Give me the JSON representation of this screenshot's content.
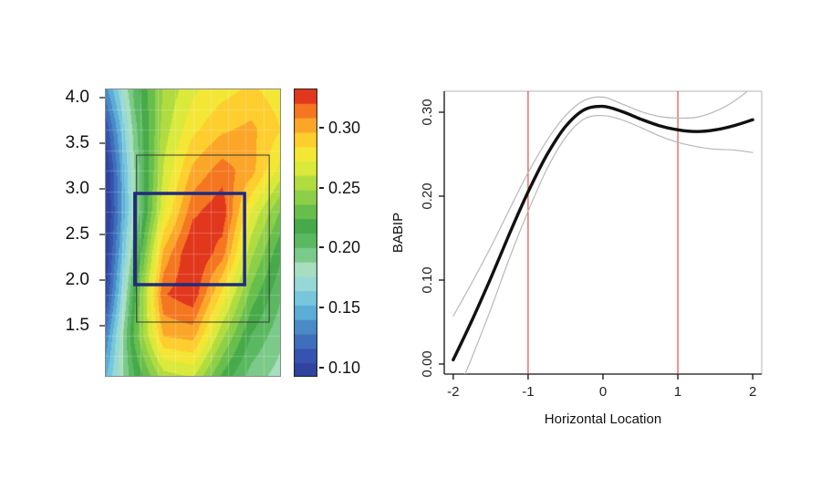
{
  "page": {
    "background": "#ffffff"
  },
  "chart_data": [
    {
      "type": "heatmap",
      "name": "pitch-location-babip-contour",
      "x_range": [
        -1.5,
        1.5
      ],
      "y_range": [
        0.94,
        4.1
      ],
      "y_ticks": [
        {
          "v": 4.0,
          "label": "4.0"
        },
        {
          "v": 3.5,
          "label": "3.5"
        },
        {
          "v": 3.0,
          "label": "3.0"
        },
        {
          "v": 2.5,
          "label": "2.5"
        },
        {
          "v": 2.0,
          "label": "2.0"
        },
        {
          "v": 1.5,
          "label": "1.5"
        }
      ],
      "colorbar": {
        "vmin": 0.092,
        "vmax": 0.333,
        "levels": 20,
        "ticks": [
          {
            "v": 0.3,
            "label": "0.30"
          },
          {
            "v": 0.25,
            "label": "0.25"
          },
          {
            "v": 0.2,
            "label": "0.20"
          },
          {
            "v": 0.15,
            "label": "0.15"
          },
          {
            "v": 0.1,
            "label": "0.10"
          }
        ]
      },
      "colormap": [
        [
          0.0,
          "#2b3b97"
        ],
        [
          0.08,
          "#3756b1"
        ],
        [
          0.16,
          "#4580c2"
        ],
        [
          0.24,
          "#60b6da"
        ],
        [
          0.31,
          "#8fd6dc"
        ],
        [
          0.38,
          "#aadfbe"
        ],
        [
          0.45,
          "#63bf6c"
        ],
        [
          0.53,
          "#45a948"
        ],
        [
          0.6,
          "#7cc94e"
        ],
        [
          0.68,
          "#b5dd3f"
        ],
        [
          0.75,
          "#eef039"
        ],
        [
          0.81,
          "#fdd92f"
        ],
        [
          0.87,
          "#fdab2a"
        ],
        [
          0.93,
          "#f4711f"
        ],
        [
          1.0,
          "#d7191c"
        ]
      ],
      "grid": [
        [
          0.135,
          0.205,
          0.25,
          0.27,
          0.28,
          0.287,
          0.278
        ],
        [
          0.105,
          0.195,
          0.255,
          0.282,
          0.295,
          0.3,
          0.285
        ],
        [
          0.088,
          0.188,
          0.262,
          0.3,
          0.315,
          0.302,
          0.268
        ],
        [
          0.084,
          0.185,
          0.272,
          0.318,
          0.33,
          0.272,
          0.235
        ],
        [
          0.09,
          0.2,
          0.3,
          0.335,
          0.315,
          0.252,
          0.215
        ],
        [
          0.1,
          0.22,
          0.32,
          0.33,
          0.282,
          0.232,
          0.202
        ],
        [
          0.128,
          0.228,
          0.298,
          0.302,
          0.252,
          0.212,
          0.192
        ],
        [
          0.15,
          0.212,
          0.255,
          0.262,
          0.222,
          0.195,
          0.183
        ]
      ],
      "rects": [
        {
          "name": "outer-zone-rect",
          "x0": -0.96,
          "x1": 1.3,
          "y0": 1.54,
          "y1": 3.37,
          "color": "#3a3a3a",
          "width": 1
        },
        {
          "name": "strike-zone-rect",
          "x0": -0.99,
          "x1": 0.88,
          "y0": 1.95,
          "y1": 2.95,
          "color": "#1f2b7e",
          "width": 3.5
        }
      ]
    },
    {
      "type": "line",
      "name": "babip-vs-horizontal-location",
      "xlabel": "Horizontal Location",
      "ylabel": "BABIP",
      "xlim": [
        -2.12,
        2.12
      ],
      "ylim": [
        -0.012,
        0.325
      ],
      "x_ticks": [
        {
          "v": -2,
          "label": "-2"
        },
        {
          "v": -1,
          "label": "-1"
        },
        {
          "v": 0,
          "label": "0"
        },
        {
          "v": 1,
          "label": "1"
        },
        {
          "v": 2,
          "label": "2"
        }
      ],
      "y_ticks": [
        {
          "v": 0.0,
          "label": "0.00"
        },
        {
          "v": 0.1,
          "label": "0.10"
        },
        {
          "v": 0.2,
          "label": "0.20"
        },
        {
          "v": 0.3,
          "label": "0.30"
        }
      ],
      "vlines": [
        {
          "x": -1,
          "color": "#e03a3a"
        },
        {
          "x": 1,
          "color": "#e03a3a"
        }
      ],
      "series": [
        {
          "name": "upper-confidence-band",
          "color": "#b8b8b8",
          "width": 1.2,
          "x": [
            -2,
            -1.75,
            -1.5,
            -1.25,
            -1,
            -0.75,
            -0.5,
            -0.25,
            0,
            0.25,
            0.5,
            0.75,
            1,
            1.25,
            1.5,
            1.75,
            2
          ],
          "y": [
            0.057,
            0.097,
            0.139,
            0.184,
            0.228,
            0.266,
            0.296,
            0.314,
            0.318,
            0.31,
            0.301,
            0.295,
            0.293,
            0.294,
            0.301,
            0.313,
            0.33
          ]
        },
        {
          "name": "lower-confidence-band",
          "color": "#b8b8b8",
          "width": 1.2,
          "x": [
            -2,
            -1.75,
            -1.5,
            -1.25,
            -1,
            -0.75,
            -0.5,
            -0.25,
            0,
            0.25,
            0.5,
            0.75,
            1,
            1.25,
            1.5,
            1.75,
            2
          ],
          "y": [
            -0.046,
            0.008,
            0.065,
            0.126,
            0.182,
            0.232,
            0.27,
            0.292,
            0.296,
            0.291,
            0.282,
            0.272,
            0.264,
            0.259,
            0.256,
            0.255,
            0.252
          ]
        },
        {
          "name": "fitted-babip-curve",
          "color": "#111111",
          "width": 3.4,
          "x": [
            -2,
            -1.75,
            -1.5,
            -1.25,
            -1,
            -0.75,
            -0.5,
            -0.25,
            0,
            0.25,
            0.5,
            0.75,
            1,
            1.25,
            1.5,
            1.75,
            2
          ],
          "y": [
            0.005,
            0.052,
            0.102,
            0.155,
            0.205,
            0.249,
            0.283,
            0.303,
            0.307,
            0.301,
            0.292,
            0.284,
            0.279,
            0.277,
            0.279,
            0.284,
            0.291
          ]
        }
      ]
    }
  ]
}
